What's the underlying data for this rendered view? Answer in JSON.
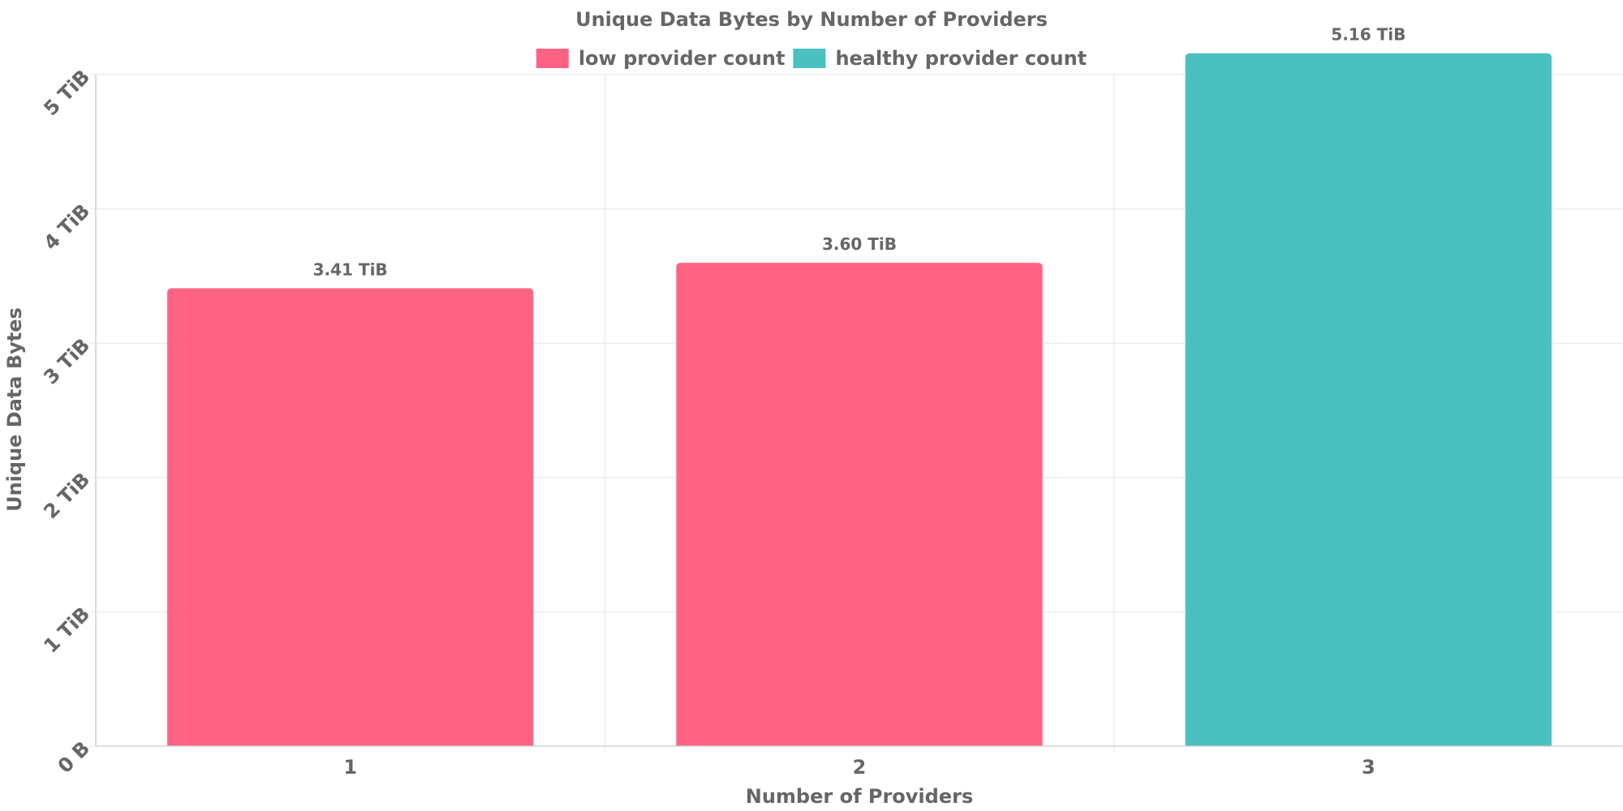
{
  "chart_data": {
    "type": "bar",
    "title": "Unique Data Bytes by Number of Providers",
    "xlabel": "Number of Providers",
    "ylabel": "Unique Data Bytes",
    "categories": [
      "1",
      "2",
      "3"
    ],
    "series": [
      {
        "name": "low provider count",
        "color": "#ff6384"
      },
      {
        "name": "healthy provider count",
        "color": "#4bc0c0"
      }
    ],
    "bars": [
      {
        "category": "1",
        "value": 3.41,
        "label": "3.41 TiB",
        "series": 0
      },
      {
        "category": "2",
        "value": 3.6,
        "label": "3.60 TiB",
        "series": 0
      },
      {
        "category": "3",
        "value": 5.16,
        "label": "5.16 TiB",
        "series": 1
      }
    ],
    "y_unit": "TiB",
    "ylim": [
      0,
      5
    ],
    "y_ticks": [
      {
        "value": 0,
        "label": "0 B"
      },
      {
        "value": 1,
        "label": "1 TiB"
      },
      {
        "value": 2,
        "label": "2 TiB"
      },
      {
        "value": 3,
        "label": "3 TiB"
      },
      {
        "value": 4,
        "label": "4 TiB"
      },
      {
        "value": 5,
        "label": "5 TiB"
      }
    ],
    "grid": true,
    "legend_position": "top-center"
  }
}
